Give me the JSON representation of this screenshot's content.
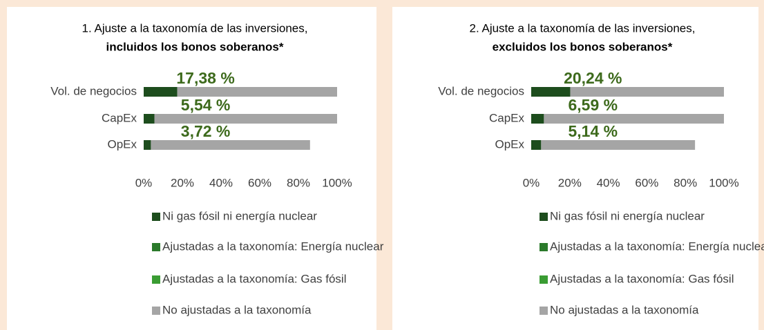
{
  "chart_data": [
    {
      "type": "bar",
      "orientation": "horizontal",
      "stacked": true,
      "title": "1. Ajuste a la taxonomía de las inversiones,",
      "subtitle": "incluidos los bonos soberanos*",
      "categories": [
        "Vol. de negocios",
        "CapEx",
        "OpEx"
      ],
      "series": [
        {
          "name": "Ni gas fósil ni energía nuclear",
          "color": "#1d4d1d",
          "values": [
            17.38,
            5.54,
            3.72
          ],
          "value_labels": [
            "17,38 %",
            "5,54 %",
            "3,72 %"
          ]
        },
        {
          "name": "Ajustadas a la taxonomía: Energía nuclear",
          "color": "#2b7a2b",
          "values": [
            0,
            0,
            0
          ]
        },
        {
          "name": "Ajustadas a la taxonomía: Gas fósil",
          "color": "#3a9c33",
          "values": [
            0,
            0,
            0
          ]
        },
        {
          "name": "No ajustadas a la taxonomía",
          "color": "#a5a5a5",
          "values": [
            82.62,
            94.46,
            82.28
          ]
        }
      ],
      "xlim": [
        0,
        100
      ],
      "xticks": [
        {
          "value": 0,
          "label": "0%"
        },
        {
          "value": 20,
          "label": "20%"
        },
        {
          "value": 40,
          "label": "40%"
        },
        {
          "value": 60,
          "label": "60%"
        },
        {
          "value": 80,
          "label": "80%"
        },
        {
          "value": 100,
          "label": "100%"
        }
      ]
    },
    {
      "type": "bar",
      "orientation": "horizontal",
      "stacked": true,
      "title": "2. Ajuste a la taxonomía de las inversiones,",
      "subtitle": "excluidos los bonos soberanos*",
      "categories": [
        "Vol. de negocios",
        "CapEx",
        "OpEx"
      ],
      "series": [
        {
          "name": "Ni gas fósil ni energía nuclear",
          "color": "#1d4d1d",
          "values": [
            20.24,
            6.59,
            5.14
          ],
          "value_labels": [
            "20,24 %",
            "6,59 %",
            "5,14 %"
          ]
        },
        {
          "name": "Ajustadas a la taxonomía: Energía nuclear",
          "color": "#2b7a2b",
          "values": [
            0,
            0,
            0
          ]
        },
        {
          "name": "Ajustadas a la taxonomía: Gas fósil",
          "color": "#3a9c33",
          "values": [
            0,
            0,
            0
          ]
        },
        {
          "name": "No ajustadas a la taxonomía",
          "color": "#a5a5a5",
          "values": [
            79.76,
            93.41,
            79.86
          ]
        }
      ],
      "xlim": [
        0,
        100
      ],
      "xticks": [
        {
          "value": 0,
          "label": "0%"
        },
        {
          "value": 20,
          "label": "20%"
        },
        {
          "value": 40,
          "label": "40%"
        },
        {
          "value": 60,
          "label": "60%"
        },
        {
          "value": 80,
          "label": "80%"
        },
        {
          "value": 100,
          "label": "100%"
        }
      ]
    }
  ]
}
